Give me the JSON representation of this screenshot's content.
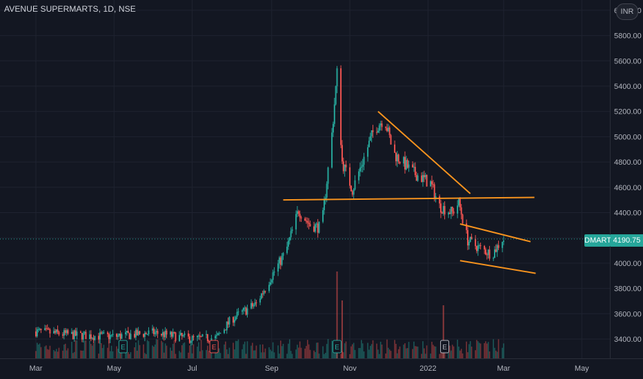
{
  "header": {
    "title": "AVENUE SUPERMARTS, 1D, NSE",
    "currency": "INR"
  },
  "price_badge": {
    "symbol": "DMART",
    "value": "4190.75"
  },
  "event_markers": [
    "E",
    "E",
    "E",
    "E"
  ],
  "colors": {
    "background": "#131722",
    "up": "#26a69a",
    "down": "#ef5350",
    "trendline": "#f7931e",
    "grid": "#1f2330",
    "axis_text": "#b2b5be"
  },
  "chart_data": {
    "type": "candlestick",
    "title": "AVENUE SUPERMARTS, 1D, NSE",
    "y_ticks": [
      "3400.00",
      "3600.00",
      "3800.00",
      "4000.00",
      "4200.00",
      "4400.00",
      "4600.00",
      "4800.00",
      "5000.00",
      "5200.00",
      "5400.00",
      "5600.00",
      "5800.00",
      "6000.00"
    ],
    "x_ticks": [
      "Mar",
      "May",
      "Jul",
      "Sep",
      "Nov",
      "2022",
      "Mar",
      "May"
    ],
    "ylim": [
      3300,
      6060
    ],
    "last_price": 4190.75,
    "price_path": [
      [
        "2021-03-01",
        3460
      ],
      [
        "2021-04-01",
        3430
      ],
      [
        "2021-05-01",
        3420
      ],
      [
        "2021-06-01",
        3450
      ],
      [
        "2021-07-01",
        3400
      ],
      [
        "2021-07-20",
        3410
      ],
      [
        "2021-08-01",
        3560
      ],
      [
        "2021-08-20",
        3680
      ],
      [
        "2021-09-01",
        3900
      ],
      [
        "2021-09-12",
        4090
      ],
      [
        "2021-09-22",
        4420
      ],
      [
        "2021-10-01",
        4300
      ],
      [
        "2021-10-10",
        4280
      ],
      [
        "2021-10-18",
        5020
      ],
      [
        "2021-10-22",
        5500
      ],
      [
        "2021-10-26",
        4800
      ],
      [
        "2021-11-03",
        4580
      ],
      [
        "2021-11-20",
        5060
      ],
      [
        "2021-11-28",
        5150
      ],
      [
        "2021-12-05",
        4870
      ],
      [
        "2021-12-20",
        4720
      ],
      [
        "2022-01-03",
        4630
      ],
      [
        "2022-01-10",
        4450
      ],
      [
        "2022-01-20",
        4400
      ],
      [
        "2022-01-25",
        4480
      ],
      [
        "2022-02-01",
        4180
      ],
      [
        "2022-02-10",
        4120
      ],
      [
        "2022-02-20",
        4070
      ],
      [
        "2022-02-28",
        4190
      ]
    ],
    "volume_spikes": [
      [
        "2021-10-22",
        0.9
      ],
      [
        "2021-10-26",
        0.6
      ],
      [
        "2022-01-13",
        0.55
      ]
    ],
    "trendlines": [
      {
        "from": [
          "2021-11-23",
          5200
        ],
        "to": [
          "2022-02-03",
          4550
        ]
      },
      {
        "from": [
          "2021-09-10",
          4500
        ],
        "to": [
          "2022-03-25",
          4520
        ]
      },
      {
        "from": [
          "2022-01-26",
          4310
        ],
        "to": [
          "2022-03-22",
          4170
        ]
      },
      {
        "from": [
          "2022-01-26",
          4020
        ],
        "to": [
          "2022-03-26",
          3920
        ]
      }
    ]
  }
}
